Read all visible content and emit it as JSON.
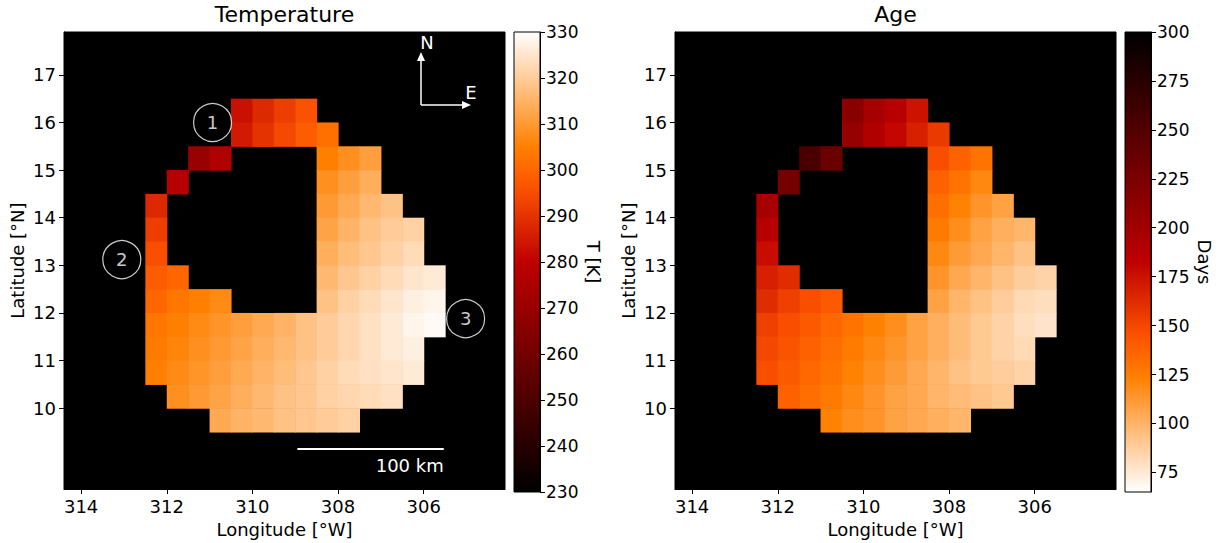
{
  "chart_data": [
    {
      "type": "heatmap",
      "title": "Temperature",
      "x_label": "Longitude [°W]",
      "y_label": "Latitude [°N]",
      "xlim": [
        314.4,
        304.1
      ],
      "xticks": [
        314,
        312,
        310,
        308,
        306
      ],
      "ylim": [
        8.3,
        17.9
      ],
      "yticks": [
        10,
        11,
        12,
        13,
        14,
        15,
        16,
        17
      ],
      "grid": false,
      "color": "gist_heat",
      "x": [
        312.25,
        311.75,
        311.25,
        310.75,
        310.25,
        309.75,
        309.25,
        308.75,
        308.25,
        307.75,
        307.25,
        306.75,
        306.25,
        305.75
      ],
      "y": [
        16.25,
        15.75,
        15.25,
        14.75,
        14.25,
        13.75,
        13.25,
        12.75,
        12.25,
        11.75,
        11.25,
        10.75,
        10.25,
        9.75
      ],
      "values": [
        [
          null,
          null,
          null,
          null,
          283,
          288,
          292,
          296,
          null,
          null,
          null,
          null,
          null,
          null
        ],
        [
          null,
          null,
          null,
          null,
          285,
          290,
          294,
          298,
          302,
          null,
          null,
          null,
          null,
          null
        ],
        [
          null,
          null,
          270,
          276,
          null,
          null,
          null,
          null,
          305,
          308,
          311,
          null,
          null,
          null
        ],
        [
          null,
          278,
          null,
          null,
          null,
          null,
          null,
          null,
          308,
          311,
          314,
          null,
          null,
          null
        ],
        [
          288,
          null,
          null,
          null,
          null,
          null,
          null,
          null,
          310,
          313,
          316,
          318,
          null,
          null
        ],
        [
          292,
          null,
          null,
          null,
          null,
          null,
          null,
          null,
          312,
          315,
          318,
          320,
          321,
          null
        ],
        [
          295,
          null,
          null,
          null,
          null,
          null,
          null,
          null,
          314,
          317,
          319,
          321,
          323,
          null
        ],
        [
          298,
          300,
          null,
          null,
          null,
          null,
          null,
          null,
          316,
          319,
          321,
          323,
          325,
          326
        ],
        [
          300,
          303,
          305,
          307,
          null,
          null,
          null,
          null,
          318,
          321,
          323,
          325,
          327,
          328
        ],
        [
          303,
          305,
          307,
          309,
          311,
          313,
          315,
          318,
          320,
          322,
          324,
          326,
          328,
          329
        ],
        [
          304,
          306,
          308,
          310,
          312,
          314,
          316,
          318,
          320,
          322,
          324,
          326,
          327,
          null
        ],
        [
          305,
          307,
          309,
          311,
          313,
          315,
          317,
          319,
          321,
          323,
          324,
          325,
          326,
          null
        ],
        [
          null,
          308,
          310,
          312,
          314,
          316,
          318,
          319,
          321,
          322,
          323,
          324,
          null,
          null
        ],
        [
          null,
          null,
          null,
          313,
          315,
          316,
          318,
          319,
          320,
          321,
          null,
          null,
          null,
          null
        ]
      ],
      "colorbar": {
        "label": "T [K]",
        "range": [
          230,
          330
        ],
        "ticks": [
          230,
          240,
          250,
          260,
          270,
          280,
          290,
          300,
          310,
          320,
          330
        ]
      },
      "annotations": [
        {
          "text": "1",
          "x": 310.93,
          "y": 16.0
        },
        {
          "text": "2",
          "x": 313.05,
          "y": 13.12
        },
        {
          "text": "3",
          "x": 305.02,
          "y": 11.88
        }
      ],
      "scale_bar": {
        "label": "100 km",
        "x": [
          308.95,
          305.53
        ],
        "y": 9.14
      },
      "compass": {
        "north": "N",
        "east": "E"
      }
    },
    {
      "type": "heatmap",
      "title": "Age",
      "x_label": "Longitude [°W]",
      "y_label": "Latitude [°N]",
      "xlim": [
        314.4,
        304.1
      ],
      "xticks": [
        314,
        312,
        310,
        308,
        306
      ],
      "ylim": [
        8.3,
        17.9
      ],
      "yticks": [
        10,
        11,
        12,
        13,
        14,
        15,
        16,
        17
      ],
      "grid": false,
      "color": "gist_heat_r",
      "x": [
        312.25,
        311.75,
        311.25,
        310.75,
        310.25,
        309.75,
        309.25,
        308.75,
        308.25,
        307.75,
        307.25,
        306.75,
        306.25,
        305.75
      ],
      "y": [
        16.25,
        15.75,
        15.25,
        14.75,
        14.25,
        13.75,
        13.25,
        12.75,
        12.25,
        11.75,
        11.25,
        10.75,
        10.25,
        9.75
      ],
      "values": [
        [
          null,
          null,
          null,
          null,
          215,
          198,
          186,
          174,
          null,
          null,
          null,
          null,
          null,
          null
        ],
        [
          null,
          null,
          null,
          null,
          208,
          192,
          180,
          168,
          156,
          null,
          null,
          null,
          null,
          null
        ],
        [
          null,
          null,
          255,
          235,
          null,
          null,
          null,
          null,
          147,
          138,
          129,
          null,
          null,
          null
        ],
        [
          null,
          228,
          null,
          null,
          null,
          null,
          null,
          null,
          138,
          129,
          120,
          null,
          null,
          null
        ],
        [
          198,
          null,
          null,
          null,
          null,
          null,
          null,
          null,
          132,
          123,
          114,
          108,
          null,
          null
        ],
        [
          186,
          null,
          null,
          null,
          null,
          null,
          null,
          null,
          126,
          117,
          108,
          102,
          99,
          null
        ],
        [
          177,
          null,
          null,
          null,
          null,
          null,
          null,
          null,
          120,
          111,
          105,
          99,
          93,
          null
        ],
        [
          168,
          162,
          null,
          null,
          null,
          null,
          null,
          null,
          114,
          105,
          99,
          93,
          88,
          85
        ],
        [
          162,
          153,
          147,
          141,
          null,
          null,
          null,
          null,
          108,
          99,
          93,
          88,
          82,
          80
        ],
        [
          153,
          147,
          141,
          135,
          129,
          123,
          117,
          108,
          102,
          96,
          90,
          85,
          80,
          77
        ],
        [
          150,
          144,
          138,
          132,
          126,
          120,
          114,
          108,
          102,
          96,
          90,
          85,
          82,
          null
        ],
        [
          147,
          141,
          135,
          129,
          123,
          117,
          111,
          105,
          99,
          93,
          90,
          88,
          85,
          null
        ],
        [
          null,
          138,
          132,
          126,
          120,
          114,
          108,
          105,
          99,
          96,
          93,
          90,
          null,
          null
        ],
        [
          null,
          null,
          null,
          123,
          117,
          114,
          108,
          105,
          102,
          99,
          null,
          null,
          null,
          null
        ]
      ],
      "colorbar": {
        "label": "Days",
        "range": [
          65,
          300
        ],
        "ticks": [
          75,
          100,
          125,
          150,
          175,
          200,
          225,
          250,
          275,
          300
        ]
      }
    }
  ]
}
